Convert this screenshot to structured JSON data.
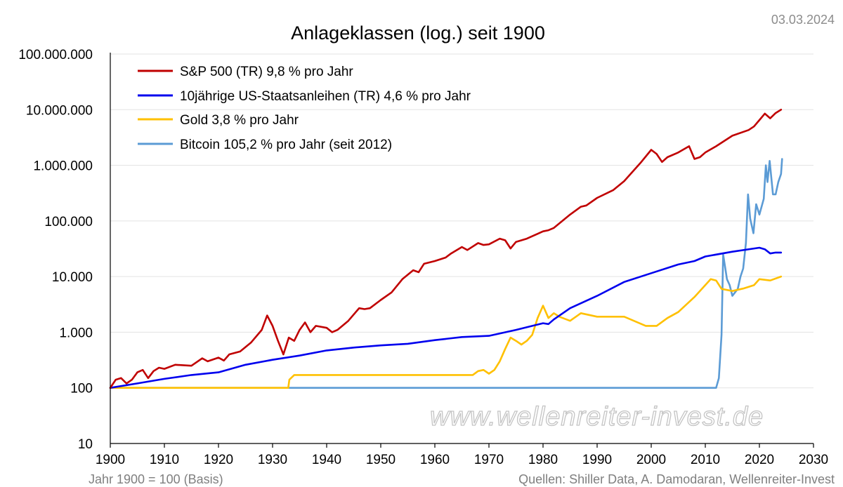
{
  "header": {
    "date": "03.03.2024"
  },
  "footer": {
    "basis_note": "Jahr 1900 = 100 (Basis)",
    "sources": "Quellen: Shiller Data, A. Damodaran, Wellenreiter-Invest"
  },
  "watermark": "www.wellenreiter-invest.de",
  "colors": {
    "sp500": "#c00000",
    "bonds": "#0000ee",
    "gold": "#ffc000",
    "bitcoin": "#5b9bd5"
  },
  "chart_data": {
    "type": "line",
    "title": "Anlageklassen (log.) seit 1900",
    "yscale": "log",
    "xlim": [
      1900,
      2030
    ],
    "ylim": [
      10,
      100000000
    ],
    "grid": true,
    "legend_position": "top-left",
    "x_ticks": [
      1900,
      1910,
      1920,
      1930,
      1940,
      1950,
      1960,
      1970,
      1980,
      1990,
      2000,
      2010,
      2020,
      2030
    ],
    "x_tick_labels": [
      "1900",
      "1910",
      "1920",
      "1930",
      "1940",
      "1950",
      "1960",
      "1970",
      "1980",
      "1990",
      "2000",
      "2010",
      "2020",
      "2030"
    ],
    "y_ticks": [
      10,
      100,
      1000,
      10000,
      100000,
      1000000,
      10000000,
      100000000
    ],
    "y_tick_labels": [
      "10",
      "100",
      "1.000",
      "10.000",
      "100.000",
      "1.000.000",
      "10.000.000",
      "100.000.000"
    ],
    "series": [
      {
        "name": "S&P 500 (TR) 9,8 % pro Jahr",
        "color": "#c00000",
        "x": [
          1900,
          1901,
          1902,
          1903,
          1904,
          1905,
          1906,
          1907,
          1908,
          1909,
          1910,
          1912,
          1915,
          1917,
          1918,
          1920,
          1921,
          1922,
          1924,
          1926,
          1928,
          1929,
          1930,
          1931,
          1932,
          1933,
          1934,
          1935,
          1936,
          1937,
          1938,
          1940,
          1941,
          1942,
          1944,
          1946,
          1947,
          1948,
          1950,
          1952,
          1954,
          1956,
          1957,
          1958,
          1960,
          1962,
          1963,
          1965,
          1966,
          1968,
          1969,
          1970,
          1972,
          1973,
          1974,
          1975,
          1977,
          1980,
          1981,
          1982,
          1985,
          1987,
          1988,
          1990,
          1993,
          1995,
          1998,
          2000,
          2001,
          2002,
          2003,
          2005,
          2007,
          2008,
          2009,
          2010,
          2012,
          2015,
          2018,
          2019,
          2020,
          2021,
          2022,
          2023,
          2024
        ],
        "values": [
          100,
          140,
          150,
          120,
          140,
          190,
          210,
          150,
          200,
          230,
          220,
          260,
          250,
          340,
          300,
          350,
          310,
          400,
          450,
          650,
          1100,
          2000,
          1300,
          700,
          400,
          800,
          700,
          1100,
          1500,
          1000,
          1300,
          1200,
          1000,
          1100,
          1600,
          2700,
          2600,
          2700,
          3800,
          5200,
          9000,
          13000,
          12000,
          17000,
          19000,
          22000,
          26000,
          34000,
          30000,
          40000,
          37000,
          38000,
          48000,
          45000,
          32000,
          42000,
          48000,
          65000,
          68000,
          75000,
          130000,
          180000,
          190000,
          260000,
          360000,
          520000,
          1100000,
          1900000,
          1600000,
          1150000,
          1400000,
          1700000,
          2200000,
          1300000,
          1400000,
          1700000,
          2200000,
          3400000,
          4300000,
          5000000,
          6500000,
          8500000,
          7000000,
          8700000,
          10000000
        ]
      },
      {
        "name": "10jährige US-Staatsanleihen (TR) 4,6 % pro Jahr",
        "color": "#0000ee",
        "x": [
          1900,
          1905,
          1910,
          1915,
          1920,
          1925,
          1930,
          1935,
          1940,
          1945,
          1950,
          1955,
          1960,
          1965,
          1970,
          1975,
          1980,
          1981,
          1982,
          1985,
          1990,
          1995,
          2000,
          2005,
          2008,
          2010,
          2015,
          2020,
          2021,
          2022,
          2023,
          2024
        ],
        "values": [
          100,
          120,
          145,
          170,
          190,
          260,
          320,
          380,
          470,
          530,
          580,
          620,
          720,
          820,
          860,
          1100,
          1450,
          1400,
          1700,
          2700,
          4500,
          8000,
          11500,
          16500,
          19000,
          23000,
          28000,
          33000,
          31000,
          26000,
          27000,
          27000
        ]
      },
      {
        "name": "Gold 3,8 % pro Jahr",
        "color": "#ffc000",
        "x": [
          1900,
          1932.9,
          1933.1,
          1934,
          1950,
          1960,
          1967,
          1968,
          1969,
          1970,
          1971,
          1972,
          1973,
          1974,
          1975,
          1976,
          1977,
          1978,
          1979,
          1980,
          1981,
          1982,
          1983,
          1985,
          1987,
          1990,
          1995,
          1999,
          2001,
          2003,
          2005,
          2008,
          2011,
          2012,
          2013,
          2015,
          2017,
          2019,
          2020,
          2022,
          2024
        ],
        "values": [
          100,
          100,
          140,
          170,
          170,
          170,
          170,
          200,
          210,
          180,
          210,
          300,
          500,
          800,
          700,
          600,
          700,
          900,
          1800,
          3000,
          1800,
          2200,
          1900,
          1600,
          2200,
          1900,
          1900,
          1300,
          1300,
          1800,
          2300,
          4300,
          9000,
          8500,
          6000,
          5500,
          6100,
          7000,
          9000,
          8500,
          10000
        ]
      },
      {
        "name": "Bitcoin 105,2 % pro Jahr (seit 2012)",
        "color": "#5b9bd5",
        "x": [
          1900,
          2012,
          2012.5,
          2013,
          2013.3,
          2013.8,
          2014,
          2014.5,
          2015,
          2016,
          2016.5,
          2017,
          2017.5,
          2017.9,
          2018.3,
          2018.9,
          2019.4,
          2020,
          2020.8,
          2021.2,
          2021.5,
          2021.9,
          2022.5,
          2023,
          2023.5,
          2024,
          2024.2
        ],
        "values": [
          100,
          100,
          150,
          900,
          25000,
          12000,
          9000,
          7000,
          4500,
          6000,
          10000,
          14000,
          40000,
          300000,
          110000,
          60000,
          200000,
          130000,
          250000,
          1000000,
          500000,
          1200000,
          300000,
          300000,
          500000,
          700000,
          1300000
        ]
      }
    ]
  }
}
